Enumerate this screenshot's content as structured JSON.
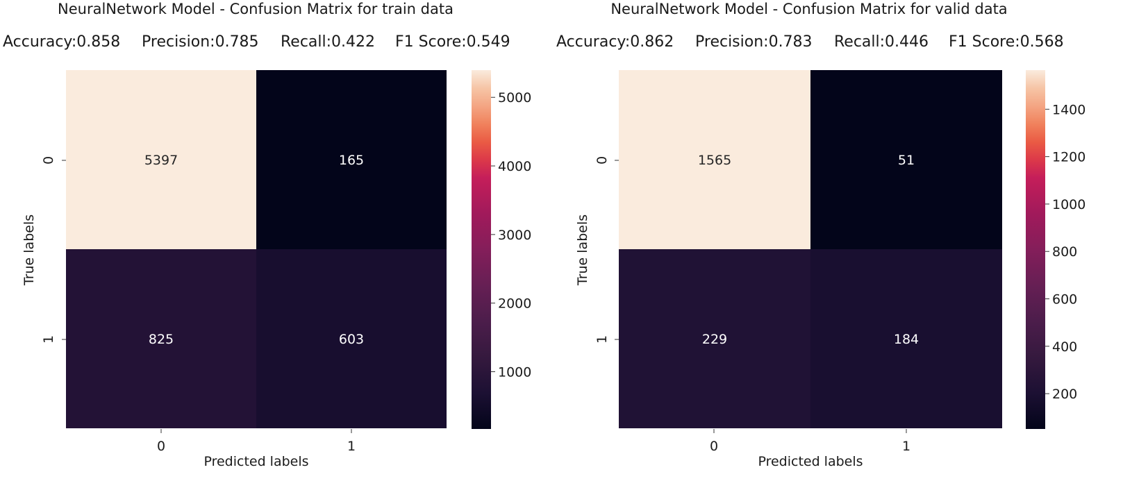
{
  "chart_data": [
    {
      "type": "heatmap",
      "title": "NeuralNetwork Model - Confusion Matrix for train data",
      "metrics": {
        "accuracy": "Accuracy:0.858",
        "precision": "Precision:0.785",
        "recall": "Recall:0.422",
        "f1": "F1 Score:0.549"
      },
      "xlabel": "Predicted labels",
      "ylabel": "True labels",
      "x_ticks": [
        "0",
        "1"
      ],
      "y_ticks": [
        "0",
        "1"
      ],
      "values": [
        [
          5397,
          165
        ],
        [
          825,
          603
        ]
      ],
      "colorbar": {
        "range": [
          165,
          5397
        ],
        "ticks": [
          1000,
          2000,
          3000,
          4000,
          5000
        ],
        "tick_labels": [
          "1000",
          "2000",
          "3000",
          "4000",
          "5000"
        ]
      },
      "colormap": "rocket"
    },
    {
      "type": "heatmap",
      "title": "NeuralNetwork Model - Confusion Matrix for valid data",
      "metrics": {
        "accuracy": "Accuracy:0.862",
        "precision": "Precision:0.783",
        "recall": "Recall:0.446",
        "f1": "F1 Score:0.568"
      },
      "xlabel": "Predicted labels",
      "ylabel": "True labels",
      "x_ticks": [
        "0",
        "1"
      ],
      "y_ticks": [
        "0",
        "1"
      ],
      "values": [
        [
          1565,
          51
        ],
        [
          229,
          184
        ]
      ],
      "colorbar": {
        "range": [
          51,
          1565
        ],
        "ticks": [
          200,
          400,
          600,
          800,
          1000,
          1200,
          1400
        ],
        "tick_labels": [
          "200",
          "400",
          "600",
          "800",
          "1000",
          "1200",
          "1400"
        ]
      },
      "colormap": "rocket"
    }
  ]
}
